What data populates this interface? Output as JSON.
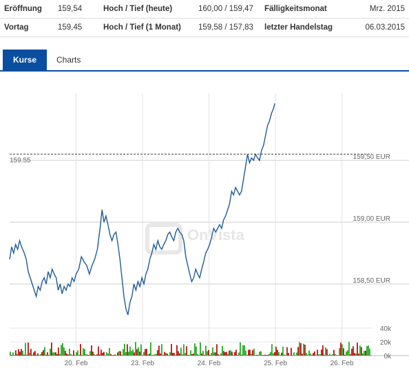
{
  "stats": {
    "rows": [
      [
        {
          "label": "Eröffnung",
          "value": "159,54"
        },
        {
          "label": "Hoch / Tief (heute)",
          "value": "160,00 / 159,47"
        },
        {
          "label": "Fälligkeitsmonat",
          "value": "Mrz. 2015"
        }
      ],
      [
        {
          "label": "Vortag",
          "value": "159,45"
        },
        {
          "label": "Hoch / Tief (1 Monat)",
          "value": "159,58 / 157,83"
        },
        {
          "label": "letzter Handelstag",
          "value": "06.03.2015"
        }
      ]
    ]
  },
  "tabs": [
    {
      "label": "Kurse",
      "active": true
    },
    {
      "label": "Charts",
      "active": false
    }
  ],
  "watermark": "OnVista",
  "colors": {
    "line": "#1f5a96",
    "tab_active": "#0a4ea0",
    "vol_up": "#22aa22",
    "vol_down": "#bb1111"
  },
  "chart_data": {
    "type": "line",
    "currency_label": "EUR",
    "reference": {
      "label": "159.55",
      "value": 159.55
    },
    "y_ticks": [
      {
        "label": "159,50 EUR",
        "value": 159.5
      },
      {
        "label": "159,00 EUR",
        "value": 159.0
      },
      {
        "label": "158,50 EUR",
        "value": 158.5
      }
    ],
    "x_ticks": [
      {
        "label": "20. Feb",
        "x": 1
      },
      {
        "label": "23. Feb",
        "x": 2
      },
      {
        "label": "24. Feb",
        "x": 3
      },
      {
        "label": "25. Feb",
        "x": 4
      },
      {
        "label": "26. Feb",
        "x": 5
      }
    ],
    "xlim": [
      0.0,
      5.45
    ],
    "ylim": [
      158.21,
      159.99
    ],
    "series": [
      {
        "points": [
          [
            0.0,
            158.7
          ],
          [
            0.03,
            158.8
          ],
          [
            0.06,
            158.75
          ],
          [
            0.09,
            158.82
          ],
          [
            0.12,
            158.78
          ],
          [
            0.15,
            158.85
          ],
          [
            0.18,
            158.8
          ],
          [
            0.22,
            158.75
          ],
          [
            0.25,
            158.7
          ],
          [
            0.28,
            158.6
          ],
          [
            0.31,
            158.55
          ],
          [
            0.34,
            158.5
          ],
          [
            0.37,
            158.45
          ],
          [
            0.4,
            158.4
          ],
          [
            0.43,
            158.48
          ],
          [
            0.46,
            158.45
          ],
          [
            0.49,
            158.52
          ],
          [
            0.52,
            158.55
          ],
          [
            0.55,
            158.5
          ],
          [
            0.58,
            158.6
          ],
          [
            0.61,
            158.55
          ],
          [
            0.64,
            158.62
          ],
          [
            0.67,
            158.58
          ],
          [
            0.7,
            158.55
          ],
          [
            0.73,
            158.45
          ],
          [
            0.76,
            158.5
          ],
          [
            0.79,
            158.42
          ],
          [
            0.82,
            158.48
          ],
          [
            0.85,
            158.45
          ],
          [
            0.88,
            158.5
          ],
          [
            0.91,
            158.48
          ],
          [
            0.94,
            158.55
          ],
          [
            0.97,
            158.52
          ],
          [
            1.0,
            158.58
          ],
          [
            1.04,
            158.62
          ],
          [
            1.08,
            158.72
          ],
          [
            1.12,
            158.68
          ],
          [
            1.16,
            158.65
          ],
          [
            1.2,
            158.58
          ],
          [
            1.24,
            158.65
          ],
          [
            1.28,
            158.7
          ],
          [
            1.32,
            158.78
          ],
          [
            1.36,
            158.95
          ],
          [
            1.39,
            159.1
          ],
          [
            1.42,
            159.0
          ],
          [
            1.45,
            159.05
          ],
          [
            1.48,
            158.98
          ],
          [
            1.51,
            158.9
          ],
          [
            1.54,
            158.85
          ],
          [
            1.57,
            158.9
          ],
          [
            1.6,
            158.92
          ],
          [
            1.63,
            158.82
          ],
          [
            1.66,
            158.7
          ],
          [
            1.69,
            158.55
          ],
          [
            1.72,
            158.4
          ],
          [
            1.75,
            158.3
          ],
          [
            1.78,
            158.25
          ],
          [
            1.81,
            158.35
          ],
          [
            1.84,
            158.4
          ],
          [
            1.87,
            158.5
          ],
          [
            1.9,
            158.45
          ],
          [
            1.93,
            158.52
          ],
          [
            1.96,
            158.48
          ],
          [
            1.99,
            158.55
          ],
          [
            2.02,
            158.5
          ],
          [
            2.05,
            158.58
          ],
          [
            2.08,
            158.62
          ],
          [
            2.11,
            158.7
          ],
          [
            2.14,
            158.75
          ],
          [
            2.17,
            158.82
          ],
          [
            2.2,
            158.78
          ],
          [
            2.23,
            158.85
          ],
          [
            2.26,
            158.8
          ],
          [
            2.29,
            158.78
          ],
          [
            2.32,
            158.82
          ],
          [
            2.35,
            158.85
          ],
          [
            2.38,
            158.9
          ],
          [
            2.41,
            158.92
          ],
          [
            2.44,
            158.88
          ],
          [
            2.47,
            158.85
          ],
          [
            2.5,
            158.92
          ],
          [
            2.53,
            158.95
          ],
          [
            2.56,
            158.92
          ],
          [
            2.59,
            158.9
          ],
          [
            2.62,
            158.85
          ],
          [
            2.65,
            158.72
          ],
          [
            2.68,
            158.65
          ],
          [
            2.71,
            158.58
          ],
          [
            2.74,
            158.52
          ],
          [
            2.77,
            158.55
          ],
          [
            2.8,
            158.62
          ],
          [
            2.83,
            158.58
          ],
          [
            2.86,
            158.55
          ],
          [
            2.89,
            158.62
          ],
          [
            2.92,
            158.68
          ],
          [
            2.95,
            158.75
          ],
          [
            2.98,
            158.78
          ],
          [
            3.01,
            158.82
          ],
          [
            3.04,
            158.88
          ],
          [
            3.07,
            158.95
          ],
          [
            3.1,
            158.92
          ],
          [
            3.13,
            158.95
          ],
          [
            3.16,
            158.98
          ],
          [
            3.19,
            158.95
          ],
          [
            3.22,
            159.02
          ],
          [
            3.25,
            159.05
          ],
          [
            3.28,
            159.1
          ],
          [
            3.31,
            159.15
          ],
          [
            3.34,
            159.25
          ],
          [
            3.37,
            159.22
          ],
          [
            3.4,
            159.28
          ],
          [
            3.43,
            159.25
          ],
          [
            3.46,
            159.22
          ],
          [
            3.49,
            159.25
          ],
          [
            3.52,
            159.35
          ],
          [
            3.55,
            159.45
          ],
          [
            3.58,
            159.55
          ],
          [
            3.61,
            159.48
          ],
          [
            3.64,
            159.52
          ],
          [
            3.67,
            159.5
          ],
          [
            3.7,
            159.55
          ],
          [
            3.73,
            159.52
          ],
          [
            3.76,
            159.5
          ],
          [
            3.79,
            159.58
          ],
          [
            3.82,
            159.62
          ],
          [
            3.85,
            159.7
          ],
          [
            3.88,
            159.78
          ],
          [
            3.91,
            159.82
          ],
          [
            3.94,
            159.88
          ],
          [
            3.97,
            159.92
          ],
          [
            3.99,
            159.96
          ]
        ]
      }
    ],
    "volume": {
      "ticks": [
        {
          "label": "40k",
          "value": 40000
        },
        {
          "label": "20k",
          "value": 20000
        },
        {
          "label": "0k",
          "value": 0
        }
      ],
      "ylim": [
        0,
        50000
      ]
    }
  }
}
